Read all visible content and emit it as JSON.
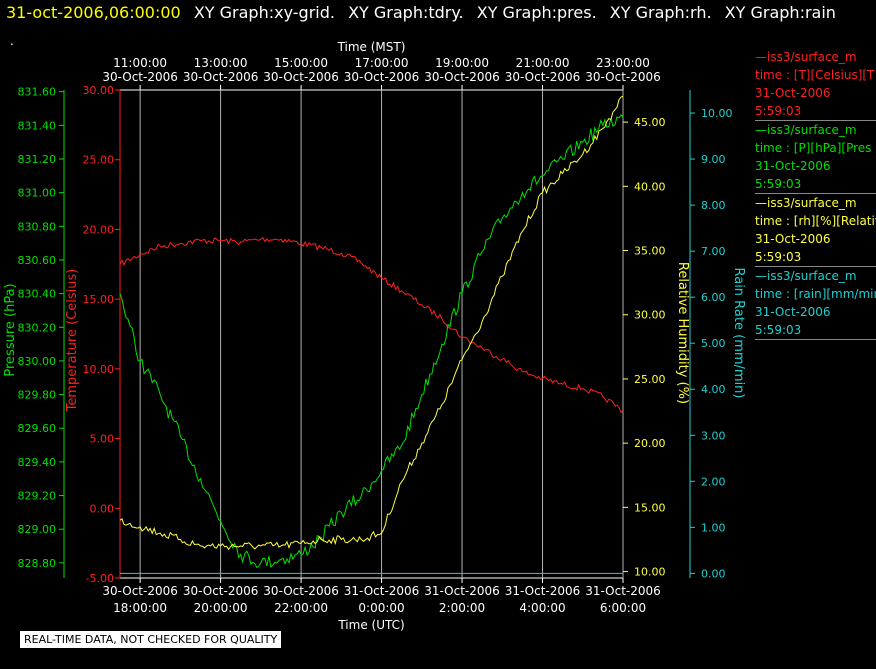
{
  "header": {
    "stamp": "31-oct-2006,06:00:00",
    "tabs": [
      "XY Graph:xy-grid.",
      "XY Graph:tdry.",
      "XY Graph:pres.",
      "XY Graph:rh.",
      "XY Graph:rain"
    ]
  },
  "dot": ".",
  "disclaimer": "REAL-TIME DATA, NOT CHECKED FOR QUALITY",
  "colors": {
    "temp": "#ff2020",
    "pres": "#00e000",
    "rh": "#ffff40",
    "rain": "#20d0d0",
    "grid": "#b0b0b0"
  },
  "legend": [
    {
      "lines": [
        "—iss3/surface_m",
        "time : [T][Celsius][T",
        "31-Oct-2006",
        "5:59:03"
      ],
      "color": "#ff2020"
    },
    {
      "lines": [
        "—iss3/surface_m",
        "time : [P][hPa][Pres",
        "31-Oct-2006",
        "5:59:03"
      ],
      "color": "#00e000"
    },
    {
      "lines": [
        "—iss3/surface_m",
        "time : [rh][%][Relativ",
        "31-Oct-2006",
        "5:59:03"
      ],
      "color": "#ffff40"
    },
    {
      "lines": [
        "—iss3/surface_m",
        "time : [rain][mm/min",
        "31-Oct-2006",
        "5:59:03"
      ],
      "color": "#20d0d0"
    }
  ],
  "chart_data": {
    "type": "line",
    "x_top_title": "Time (MST)",
    "x_bottom_title": "Time (UTC)",
    "x_range_hours": [
      -0.5,
      12.0
    ],
    "top_ticks": [
      {
        "h": 0,
        "l1": "11:00:00",
        "l2": "30-Oct-2006"
      },
      {
        "h": 2,
        "l1": "13:00:00",
        "l2": "30-Oct-2006"
      },
      {
        "h": 4,
        "l1": "15:00:00",
        "l2": "30-Oct-2006"
      },
      {
        "h": 6,
        "l1": "17:00:00",
        "l2": "30-Oct-2006"
      },
      {
        "h": 8,
        "l1": "19:00:00",
        "l2": "30-Oct-2006"
      },
      {
        "h": 10,
        "l1": "21:00:00",
        "l2": "30-Oct-2006"
      },
      {
        "h": 12,
        "l1": "23:00:00",
        "l2": "30-Oct-2006"
      }
    ],
    "bottom_ticks": [
      {
        "h": 0,
        "l1": "30-Oct-2006",
        "l2": "18:00:00"
      },
      {
        "h": 2,
        "l1": "30-Oct-2006",
        "l2": "20:00:00"
      },
      {
        "h": 4,
        "l1": "30-Oct-2006",
        "l2": "22:00:00"
      },
      {
        "h": 6,
        "l1": "31-Oct-2006",
        "l2": "0:00:00"
      },
      {
        "h": 8,
        "l1": "31-Oct-2006",
        "l2": "2:00:00"
      },
      {
        "h": 10,
        "l1": "31-Oct-2006",
        "l2": "4:00:00"
      },
      {
        "h": 12,
        "l1": "31-Oct-2006",
        "l2": "6:00:00"
      }
    ],
    "axes": {
      "pres": {
        "label": "Pressure (hPa)",
        "range": [
          828.71,
          831.61
        ],
        "ticks": [
          "828.80",
          "829.00",
          "829.20",
          "829.40",
          "829.60",
          "829.80",
          "830.00",
          "830.20",
          "830.40",
          "830.60",
          "830.80",
          "831.00",
          "831.20",
          "831.40",
          "831.60"
        ]
      },
      "temp": {
        "label": "Temperature (Celsius)",
        "range": [
          -5,
          30
        ],
        "ticks": [
          "-5.00",
          "0.00",
          "5.00",
          "10.00",
          "15.00",
          "20.00",
          "25.00",
          "30.00"
        ]
      },
      "rh": {
        "label": "Relative Humidity (%)",
        "range": [
          9.5,
          47.5
        ],
        "ticks": [
          "10.00",
          "15.00",
          "20.00",
          "25.00",
          "30.00",
          "35.00",
          "40.00",
          "45.00"
        ]
      },
      "rain": {
        "label": "Rain Rate (mm/min)",
        "range": [
          -0.1,
          10.5
        ],
        "ticks": [
          "0.00",
          "1.00",
          "2.00",
          "3.00",
          "4.00",
          "5.00",
          "6.00",
          "7.00",
          "8.00",
          "9.00",
          "10.00"
        ]
      }
    },
    "series": [
      {
        "key": "temp",
        "x": [
          -0.5,
          0,
          0.5,
          1,
          1.5,
          2,
          2.5,
          3,
          3.5,
          4,
          4.5,
          5,
          5.5,
          6,
          6.5,
          7,
          7.5,
          8,
          8.5,
          9,
          9.5,
          10,
          10.5,
          11,
          11.5,
          12
        ],
        "y": [
          17.5,
          18.2,
          18.8,
          19.0,
          19.2,
          19.2,
          19.1,
          19.3,
          19.3,
          19.0,
          18.7,
          18.3,
          17.6,
          16.5,
          15.6,
          14.6,
          13.6,
          12.3,
          11.5,
          10.7,
          9.8,
          9.3,
          8.9,
          8.6,
          8.0,
          7.0
        ]
      },
      {
        "key": "pres",
        "x": [
          -0.5,
          0,
          0.5,
          1,
          1.5,
          2,
          2.5,
          3,
          3.5,
          4,
          4.5,
          5,
          5.5,
          6,
          6.5,
          7,
          7.5,
          8,
          8.5,
          9,
          9.5,
          10,
          10.5,
          11,
          11.5,
          12
        ],
        "y": [
          830.4,
          830.0,
          829.8,
          829.55,
          829.3,
          829.05,
          828.85,
          828.8,
          828.82,
          828.85,
          828.95,
          829.1,
          829.2,
          829.35,
          829.5,
          829.8,
          830.1,
          830.4,
          830.65,
          830.85,
          831.0,
          831.1,
          831.2,
          831.3,
          831.4,
          831.45
        ]
      },
      {
        "key": "rh",
        "x": [
          -0.5,
          0,
          0.5,
          1,
          1.5,
          2,
          2.5,
          3,
          3.5,
          4,
          4.5,
          5,
          5.5,
          6,
          6.5,
          7,
          7.5,
          8,
          8.5,
          9,
          9.5,
          10,
          10.5,
          11,
          11.5,
          12
        ],
        "y": [
          14.0,
          13.5,
          13.0,
          12.5,
          12.0,
          12.0,
          12.0,
          12.0,
          12.0,
          12.2,
          12.5,
          12.5,
          12.5,
          13.0,
          17.0,
          20.0,
          23.0,
          26.5,
          29.5,
          33.0,
          36.5,
          39.5,
          41.0,
          42.5,
          44.5,
          47.0
        ]
      },
      {
        "key": "rain",
        "x": [
          -0.5,
          12
        ],
        "y": [
          0,
          0
        ]
      }
    ]
  }
}
